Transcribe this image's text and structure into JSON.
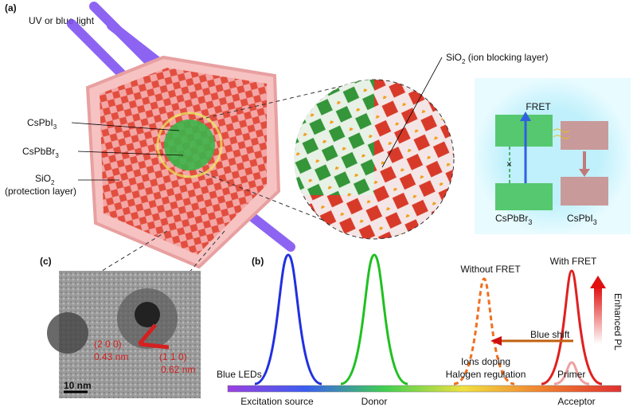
{
  "panel_a": {
    "label": "(a)",
    "light": "UV or blue light",
    "cspbi3": {
      "base": "CsPbI",
      "sub": "3"
    },
    "cspbbr3": {
      "base": "CsPbBr",
      "sub": "3"
    },
    "sio2_protection": {
      "base": "SiO",
      "sub": "2",
      "note": "(protection layer)"
    },
    "sio2_blocking": {
      "base": "SiO",
      "sub": "2",
      "note": " (ion blocking layer)"
    },
    "fret": {
      "title": "FRET",
      "donor": {
        "base": "CsPbBr",
        "sub": "3"
      },
      "acceptor": {
        "base": "CsPbI",
        "sub": "3"
      }
    }
  },
  "panel_c": {
    "label": "(c)",
    "planes": [
      {
        "index": "(2 0 0)",
        "spacing": "0.43 nm"
      },
      {
        "index": "(1 1 0)",
        "spacing": "0.62 nm"
      }
    ],
    "scale": "10 nm"
  },
  "panel_b": {
    "label": "(b)",
    "without_fret": "Without FRET",
    "with_fret": "With FRET",
    "enhanced": "Enhanced PL",
    "blue_shift": "Blue shift",
    "ions_doping": "Ions doping",
    "halogen": "Halogen regulation",
    "blue_leds": "Blue LEDs",
    "primer": "Primer",
    "axis": [
      "Excitation source",
      "Donor",
      "Acceptor"
    ]
  }
}
